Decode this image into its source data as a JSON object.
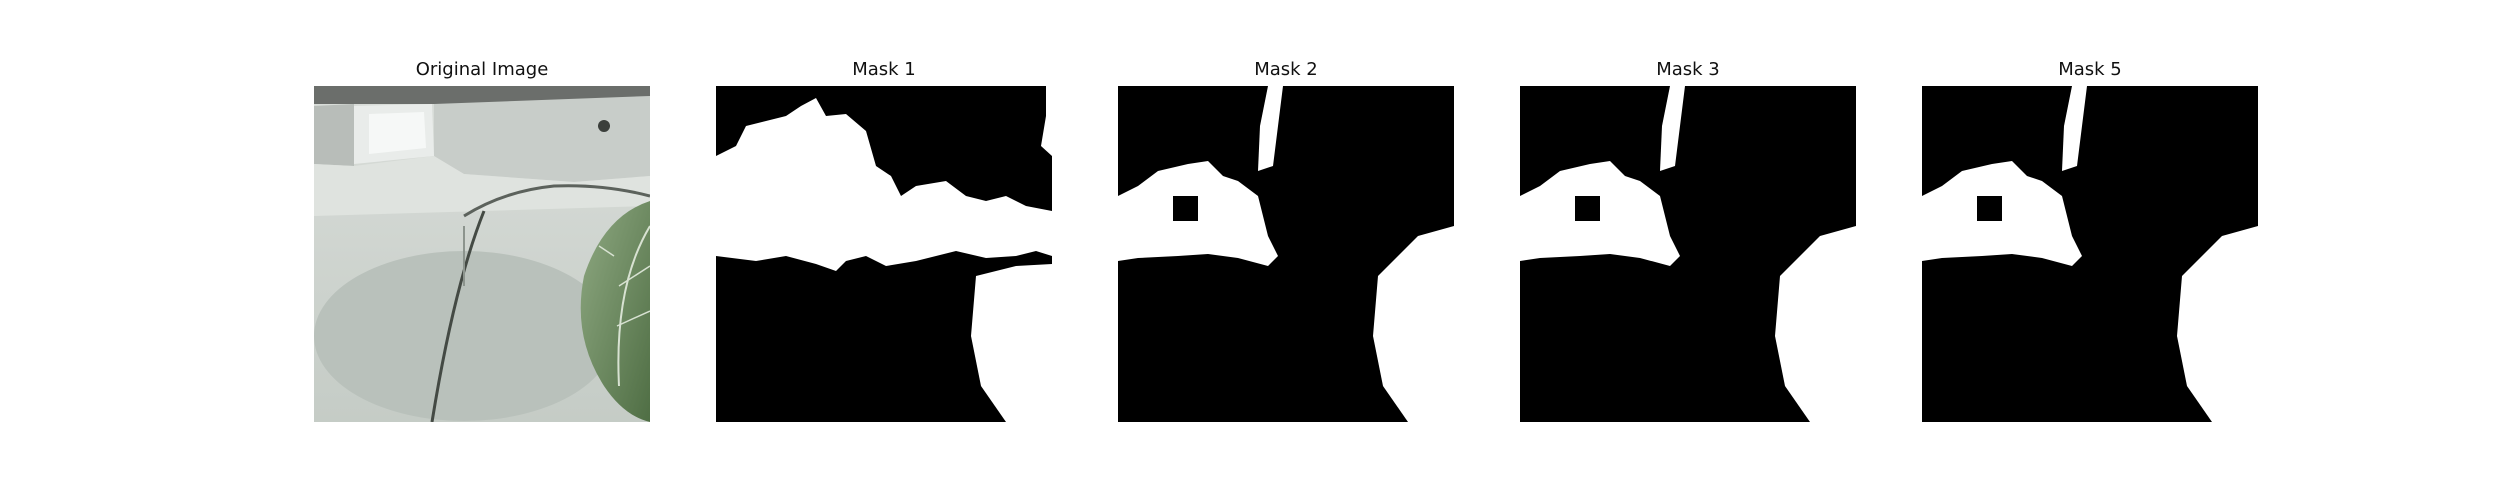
{
  "figure": {
    "panels": [
      {
        "title": "Original Image",
        "kind": "photo"
      },
      {
        "title": "Mask 1",
        "kind": "mask"
      },
      {
        "title": "Mask 2",
        "kind": "mask"
      },
      {
        "title": "Mask 3",
        "kind": "mask"
      },
      {
        "title": "Mask 5",
        "kind": "mask"
      }
    ]
  },
  "colors": {
    "background": "#ffffff",
    "mask_background": "#000000",
    "mask_foreground": "#ffffff",
    "photo_surface": "#cfd5d0",
    "leaf": "#6f8f5f"
  }
}
